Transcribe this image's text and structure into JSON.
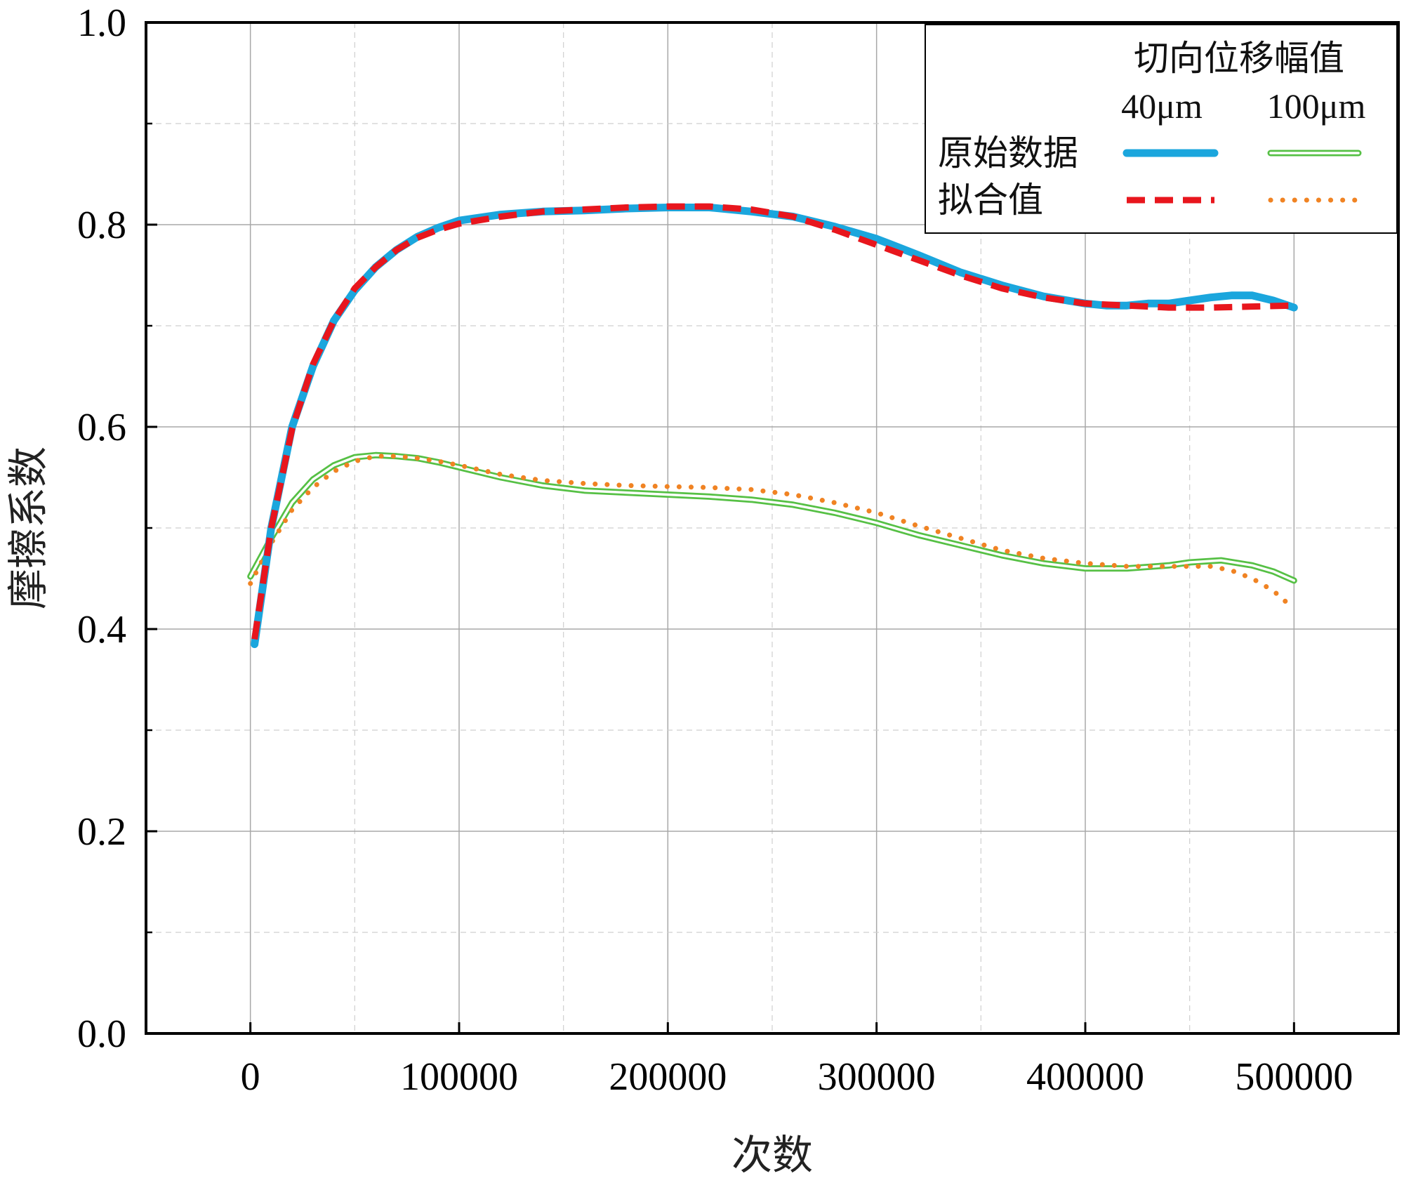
{
  "chart_data": {
    "type": "line",
    "xlabel": "次数",
    "ylabel": "摩擦系数",
    "xlim": [
      -50000,
      550000
    ],
    "ylim": [
      0.0,
      1.0
    ],
    "x_ticks": [
      "0",
      "100000",
      "200000",
      "300000",
      "400000",
      "500000"
    ],
    "y_ticks": [
      "0.0",
      "0.2",
      "0.4",
      "0.6",
      "0.8",
      "1.0"
    ],
    "grid": true,
    "legend": {
      "placement": "top-right",
      "title": "切向位移幅值",
      "col_labels": [
        "40μm",
        "100μm"
      ],
      "row_labels": [
        "原始数据",
        "拟合值"
      ]
    },
    "series": [
      {
        "name": "原始数据 40μm",
        "color": "#1ba6dd",
        "style": "solid-thick",
        "x": [
          2000,
          10000,
          20000,
          30000,
          40000,
          50000,
          60000,
          70000,
          80000,
          90000,
          100000,
          120000,
          140000,
          160000,
          180000,
          200000,
          220000,
          240000,
          260000,
          280000,
          300000,
          320000,
          340000,
          360000,
          380000,
          400000,
          410000,
          420000,
          430000,
          440000,
          450000,
          460000,
          470000,
          480000,
          490000,
          500000
        ],
        "y": [
          0.385,
          0.5,
          0.6,
          0.66,
          0.705,
          0.735,
          0.758,
          0.775,
          0.788,
          0.797,
          0.804,
          0.81,
          0.813,
          0.814,
          0.816,
          0.817,
          0.817,
          0.813,
          0.808,
          0.798,
          0.786,
          0.77,
          0.753,
          0.74,
          0.729,
          0.722,
          0.72,
          0.72,
          0.722,
          0.722,
          0.725,
          0.728,
          0.73,
          0.73,
          0.725,
          0.718
        ]
      },
      {
        "name": "拟合值 40μm",
        "color": "#e8161d",
        "style": "dashed",
        "x": [
          2000,
          10000,
          20000,
          30000,
          40000,
          50000,
          60000,
          70000,
          80000,
          90000,
          100000,
          120000,
          140000,
          160000,
          180000,
          200000,
          220000,
          240000,
          260000,
          280000,
          300000,
          320000,
          340000,
          360000,
          380000,
          400000,
          420000,
          440000,
          460000,
          480000,
          500000
        ],
        "y": [
          0.39,
          0.5,
          0.598,
          0.662,
          0.705,
          0.737,
          0.758,
          0.775,
          0.787,
          0.795,
          0.801,
          0.808,
          0.813,
          0.815,
          0.817,
          0.818,
          0.818,
          0.815,
          0.808,
          0.795,
          0.78,
          0.765,
          0.75,
          0.737,
          0.728,
          0.722,
          0.72,
          0.718,
          0.718,
          0.719,
          0.72
        ]
      },
      {
        "name": "原始数据 100μm",
        "color": "#56c045",
        "style": "double-line",
        "x": [
          0,
          10000,
          20000,
          30000,
          40000,
          50000,
          60000,
          70000,
          80000,
          90000,
          100000,
          120000,
          140000,
          160000,
          180000,
          200000,
          220000,
          240000,
          260000,
          280000,
          300000,
          320000,
          340000,
          360000,
          380000,
          400000,
          420000,
          440000,
          450000,
          465000,
          480000,
          490000,
          500000
        ],
        "y": [
          0.452,
          0.49,
          0.525,
          0.548,
          0.562,
          0.57,
          0.572,
          0.571,
          0.569,
          0.565,
          0.56,
          0.55,
          0.542,
          0.537,
          0.535,
          0.533,
          0.531,
          0.528,
          0.523,
          0.515,
          0.505,
          0.493,
          0.483,
          0.473,
          0.465,
          0.46,
          0.46,
          0.463,
          0.466,
          0.468,
          0.463,
          0.457,
          0.448
        ]
      },
      {
        "name": "拟合值 100μm",
        "color": "#f08323",
        "style": "dotted",
        "x": [
          0,
          10000,
          20000,
          30000,
          40000,
          50000,
          60000,
          70000,
          80000,
          90000,
          100000,
          120000,
          140000,
          160000,
          180000,
          200000,
          220000,
          240000,
          260000,
          280000,
          300000,
          320000,
          340000,
          360000,
          380000,
          400000,
          420000,
          440000,
          460000,
          470000,
          480000,
          490000,
          500000
        ],
        "y": [
          0.445,
          0.485,
          0.518,
          0.54,
          0.556,
          0.566,
          0.571,
          0.571,
          0.569,
          0.566,
          0.562,
          0.553,
          0.547,
          0.544,
          0.542,
          0.541,
          0.54,
          0.538,
          0.533,
          0.525,
          0.515,
          0.502,
          0.49,
          0.478,
          0.47,
          0.465,
          0.462,
          0.462,
          0.462,
          0.458,
          0.45,
          0.438,
          0.42
        ]
      }
    ]
  }
}
